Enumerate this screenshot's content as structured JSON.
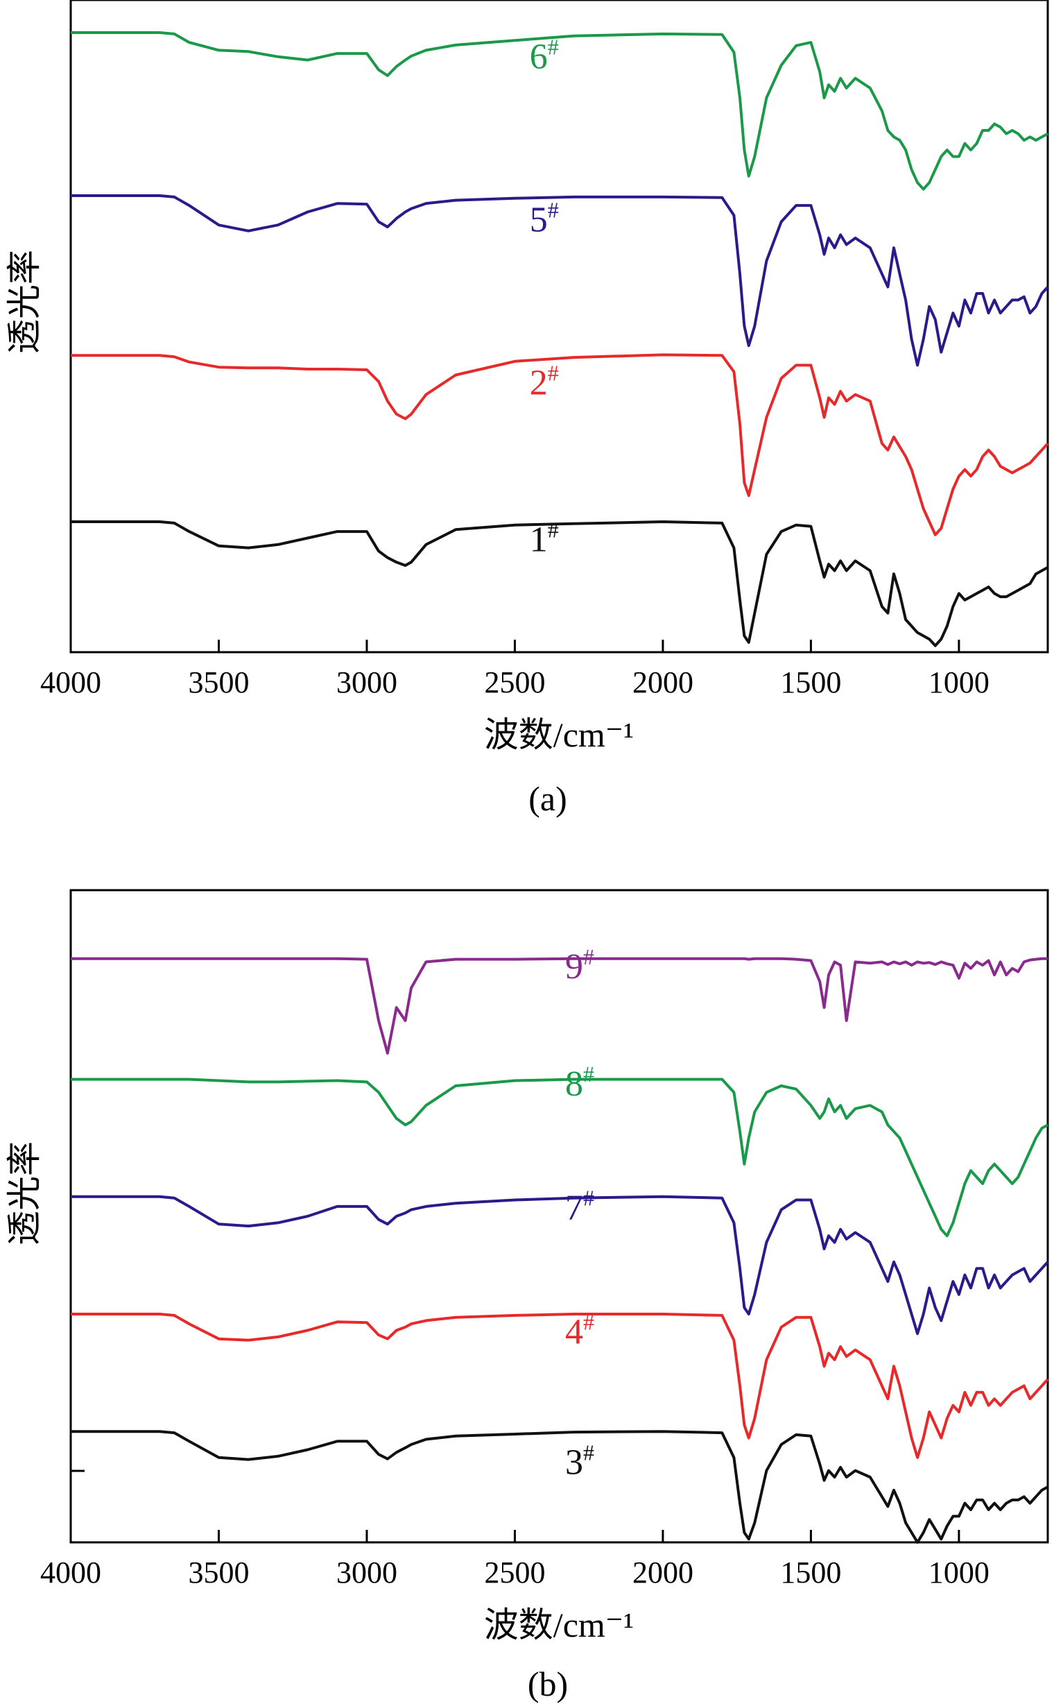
{
  "chart_data": [
    {
      "type": "line",
      "panel_caption": "(a)",
      "xlabel": "波数/cm⁻¹",
      "ylabel": "透光率",
      "xlim": [
        4000,
        700
      ],
      "x_reversed": true,
      "xticks": [
        "4000",
        "3500",
        "3000",
        "2500",
        "2000",
        "1500",
        "1000"
      ],
      "xtick_values": [
        4000,
        3500,
        3000,
        2500,
        2000,
        1500,
        1000
      ],
      "ylim": [
        0,
        100
      ],
      "yticks_shown": false,
      "grid": false,
      "legend": "none",
      "x": [
        4000,
        3700,
        3650,
        3600,
        3500,
        3400,
        3300,
        3200,
        3100,
        3000,
        2960,
        2930,
        2900,
        2870,
        2850,
        2800,
        2700,
        2500,
        2300,
        2000,
        1800,
        1760,
        1740,
        1725,
        1710,
        1690,
        1650,
        1600,
        1550,
        1500,
        1470,
        1455,
        1440,
        1420,
        1400,
        1380,
        1350,
        1300,
        1260,
        1240,
        1220,
        1200,
        1180,
        1160,
        1140,
        1120,
        1100,
        1080,
        1060,
        1040,
        1020,
        1000,
        980,
        960,
        940,
        920,
        900,
        880,
        860,
        840,
        820,
        800,
        780,
        760,
        740,
        720,
        700
      ],
      "series": [
        {
          "label": "6",
          "label_sup": "#",
          "color": "#1a9a48",
          "label_pos": [
            2450,
            89.5
          ],
          "values": [
            95,
            95,
            94.8,
            93.5,
            92.3,
            92.1,
            91.3,
            90.8,
            91.8,
            91.8,
            89.3,
            88.4,
            89.8,
            90.8,
            91.4,
            92.3,
            93.1,
            93.8,
            94.5,
            94.8,
            94.7,
            92,
            85,
            77,
            73,
            76,
            85,
            90,
            93,
            93.5,
            89,
            85,
            87,
            86,
            88,
            86.5,
            88,
            86.5,
            83,
            80,
            79,
            78.5,
            77,
            74,
            72,
            71,
            72,
            74,
            76,
            77,
            76,
            76,
            78,
            77,
            78,
            80,
            80,
            81,
            80.5,
            79.5,
            80,
            79.5,
            78.5,
            79,
            78.5,
            79,
            79.5
          ]
        },
        {
          "label": "5",
          "label_sup": "#",
          "color": "#2b1a8a",
          "label_pos": [
            2450,
            64.5
          ],
          "values": [
            70,
            70,
            69.8,
            68.5,
            65.5,
            64.6,
            65.5,
            67.5,
            68.8,
            68.7,
            66,
            65.2,
            66.5,
            67.5,
            68,
            68.8,
            69.3,
            69.6,
            69.8,
            69.8,
            69.7,
            67,
            58,
            50,
            47,
            50,
            60,
            66,
            68.5,
            68.5,
            64,
            61,
            63.5,
            62,
            64,
            62.5,
            63.5,
            62,
            58,
            56,
            62,
            58,
            54,
            48,
            44,
            48,
            53,
            51,
            46,
            49,
            52,
            50,
            54,
            52,
            55,
            55,
            52,
            54,
            52,
            53,
            54,
            54,
            54.5,
            52,
            53,
            55,
            56
          ]
        },
        {
          "label": "2",
          "label_sup": "#",
          "color": "#e8292a",
          "label_pos": [
            2450,
            39.5
          ],
          "values": [
            45.5,
            45.5,
            45.3,
            44.5,
            43.7,
            43.6,
            43.6,
            43.4,
            43.4,
            43.3,
            41.5,
            38.5,
            36.5,
            35.8,
            36.5,
            39.5,
            42.5,
            44.6,
            45.2,
            45.6,
            45.5,
            43,
            35,
            26,
            24,
            28,
            36,
            42,
            44,
            44,
            39,
            36,
            39,
            38,
            40,
            38.5,
            39.5,
            38.5,
            32,
            31,
            33,
            31.5,
            30,
            28,
            25,
            22,
            20,
            18,
            19,
            22,
            25,
            27,
            28,
            27,
            28,
            30,
            31,
            30,
            28.5,
            28,
            27.5,
            28,
            28.5,
            29,
            30,
            31,
            32
          ]
        },
        {
          "label": "1",
          "label_sup": "#",
          "color": "#111111",
          "label_pos": [
            2450,
            15.5
          ],
          "values": [
            20,
            20,
            19.8,
            18.5,
            16.3,
            16,
            16.5,
            17.5,
            18.5,
            18.5,
            15.5,
            14.5,
            13.8,
            13.3,
            13.8,
            16.5,
            18.8,
            19.5,
            19.7,
            20,
            19.8,
            16,
            8,
            2.5,
            1.5,
            6,
            15,
            18.5,
            19.5,
            19.3,
            14,
            11.5,
            13.5,
            12.5,
            14,
            12.5,
            14,
            12.5,
            7,
            6,
            12,
            9,
            5,
            4,
            3,
            2.5,
            2,
            1,
            2,
            4,
            7,
            9,
            8,
            8.5,
            9,
            9.5,
            10,
            9,
            8.5,
            8.5,
            9,
            9.5,
            10,
            10.5,
            12,
            12.5,
            13
          ]
        }
      ]
    },
    {
      "type": "line",
      "panel_caption": "(b)",
      "xlabel": "波数/cm⁻¹",
      "ylabel": "透光率",
      "xlim": [
        4000,
        700
      ],
      "x_reversed": true,
      "xticks": [
        "4000",
        "3500",
        "3000",
        "2500",
        "2000",
        "1500",
        "1000"
      ],
      "xtick_values": [
        4000,
        3500,
        3000,
        2500,
        2000,
        1500,
        1000
      ],
      "ylim": [
        0,
        100
      ],
      "yticks_shown": false,
      "grid": false,
      "legend": "none",
      "x": [
        4000,
        3700,
        3650,
        3600,
        3500,
        3400,
        3300,
        3200,
        3100,
        3000,
        2960,
        2930,
        2900,
        2870,
        2850,
        2800,
        2700,
        2500,
        2300,
        2000,
        1800,
        1760,
        1740,
        1725,
        1710,
        1690,
        1650,
        1600,
        1550,
        1500,
        1470,
        1455,
        1440,
        1420,
        1400,
        1380,
        1350,
        1300,
        1260,
        1240,
        1220,
        1200,
        1180,
        1160,
        1140,
        1120,
        1100,
        1080,
        1060,
        1040,
        1020,
        1000,
        980,
        960,
        940,
        920,
        900,
        880,
        860,
        840,
        820,
        800,
        780,
        760,
        740,
        720,
        700
      ],
      "series": [
        {
          "label": "9",
          "label_sup": "#",
          "color": "#8a2a8f",
          "label_pos": [
            2330,
            86.5
          ],
          "values": [
            89.5,
            89.5,
            89.5,
            89.5,
            89.5,
            89.5,
            89.5,
            89.5,
            89.5,
            89.4,
            80,
            75,
            82,
            80,
            85,
            89,
            89.4,
            89.4,
            89.5,
            89.5,
            89.5,
            89.5,
            89.5,
            89.5,
            89.4,
            89.5,
            89.5,
            89.5,
            89.4,
            89.2,
            86,
            82,
            87,
            89,
            88.5,
            80,
            89,
            88.8,
            89,
            88.6,
            89,
            88.7,
            89,
            88.5,
            89,
            88.8,
            88.9,
            88.6,
            89,
            88.7,
            88.5,
            86.5,
            88.8,
            88,
            89,
            88.5,
            89.2,
            87,
            89,
            87,
            88,
            87.5,
            89,
            89.3,
            89.4,
            89.5,
            89.5
          ]
        },
        {
          "label": "8",
          "label_sup": "#",
          "color": "#1a9a48",
          "label_pos": [
            2330,
            68.5
          ],
          "values": [
            71,
            71,
            71,
            71,
            70.8,
            70.6,
            70.6,
            70.7,
            70.8,
            70.6,
            69,
            67,
            65,
            64,
            64.5,
            67,
            70,
            70.8,
            71,
            71,
            71,
            69,
            63,
            58,
            62,
            66,
            69,
            70,
            69.5,
            67,
            65,
            66,
            68,
            66,
            67,
            65,
            66.5,
            67,
            66,
            64,
            63,
            62,
            60,
            58,
            56,
            54,
            52,
            50,
            48,
            47,
            49,
            52,
            55,
            57,
            56,
            55,
            57,
            58,
            57,
            56,
            55,
            56,
            58,
            60,
            62,
            63.5,
            64
          ]
        },
        {
          "label": "7",
          "label_sup": "#",
          "color": "#2b1a8a",
          "label_pos": [
            2330,
            49.5
          ],
          "values": [
            53,
            53,
            52.8,
            51.5,
            48.8,
            48.5,
            49,
            50,
            51.5,
            51.5,
            49.5,
            48.8,
            50,
            50.5,
            51,
            51.5,
            52,
            52.5,
            52.8,
            53,
            52.8,
            49,
            42,
            36,
            35,
            38,
            46,
            51,
            52.5,
            52.5,
            48,
            45,
            47,
            46,
            48,
            46.5,
            47.5,
            46,
            42,
            40,
            43,
            41,
            38,
            35,
            32,
            35,
            39,
            36,
            34,
            37,
            40,
            38,
            41,
            39,
            42,
            42,
            39,
            41,
            39,
            40,
            41,
            41.5,
            42,
            40,
            41,
            42,
            43
          ]
        },
        {
          "label": "4",
          "label_sup": "#",
          "color": "#e8292a",
          "label_pos": [
            2330,
            30.5
          ],
          "values": [
            35,
            35,
            34.8,
            33.5,
            31.2,
            31,
            31.5,
            32.5,
            33.8,
            33.7,
            31.8,
            31.2,
            32.5,
            33,
            33.5,
            34,
            34.5,
            34.8,
            35,
            35,
            34.8,
            31,
            24,
            18,
            16,
            19,
            28,
            33,
            34.5,
            34.5,
            30,
            27,
            29,
            28,
            30,
            28.5,
            29.5,
            28,
            24,
            22,
            27,
            24,
            20,
            16,
            13,
            16,
            20,
            18,
            16,
            19,
            21,
            20,
            23,
            21,
            23,
            23,
            21,
            22,
            21,
            22,
            23,
            23.5,
            24,
            22,
            23,
            24,
            25
          ]
        },
        {
          "label": "3",
          "label_sup": "#",
          "color": "#111111",
          "label_pos": [
            2330,
            10.5
          ],
          "values": [
            17,
            17,
            16.8,
            15.5,
            13,
            12.7,
            13.2,
            14.2,
            15.5,
            15.5,
            13.5,
            12.8,
            13.8,
            14.5,
            15,
            15.8,
            16.3,
            16.6,
            16.9,
            17,
            16.8,
            13,
            6,
            1.5,
            0.5,
            3,
            11,
            15,
            16.5,
            16.3,
            12,
            9.5,
            11,
            10,
            11.5,
            10,
            11,
            10,
            7,
            5.5,
            8,
            6,
            3,
            1.5,
            0,
            1.5,
            3.5,
            2,
            0.5,
            2.5,
            4,
            4,
            6,
            5,
            6.5,
            6.5,
            5,
            6,
            5,
            6,
            6.5,
            6.5,
            7,
            6,
            7,
            8,
            8.5
          ]
        }
      ]
    }
  ]
}
